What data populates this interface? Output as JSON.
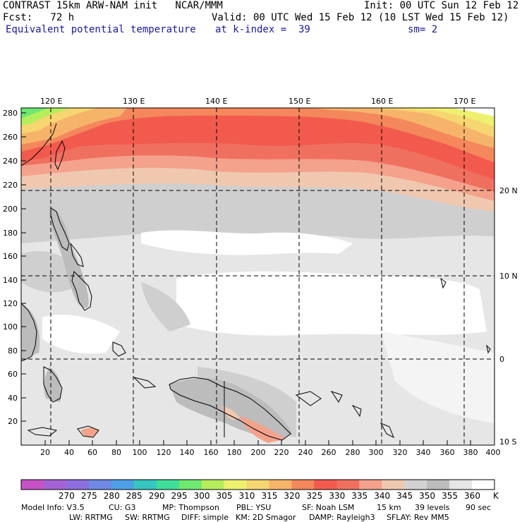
{
  "header": {
    "line1_left": "CONTRAST 15km ARW-NAM init   NCAR/MMM",
    "line1_right": "Init: 00 UTC Sun 12 Feb 12",
    "line2_left": "Fcst:   72 h",
    "line2_right": "Valid: 00 UTC Wed 15 Feb 12 (10 LST Wed 15 Feb 12)",
    "line3_field": "Equivalent potential temperature",
    "line3_level": "at k-index =  39",
    "line3_smooth": "sm= 2"
  },
  "map": {
    "lon_labels": [
      "120 E",
      "130 E",
      "140 E",
      "150 E",
      "160 E",
      "170 E"
    ],
    "lat_labels": [
      "20 N",
      "10 N",
      "0",
      "10 S"
    ],
    "x_grid_ticks": [
      "20",
      "40",
      "60",
      "80",
      "100",
      "120",
      "140",
      "160",
      "180",
      "200",
      "220",
      "240",
      "260",
      "280",
      "300",
      "320",
      "340",
      "360",
      "380",
      "400"
    ],
    "y_grid_ticks": [
      "280",
      "260",
      "240",
      "220",
      "200",
      "180",
      "160",
      "140",
      "120",
      "100",
      "80",
      "60",
      "40",
      "20"
    ]
  },
  "colorbar": {
    "levels": [
      "270",
      "275",
      "280",
      "285",
      "290",
      "295",
      "300",
      "305",
      "310",
      "315",
      "320",
      "325",
      "330",
      "335",
      "340",
      "345",
      "350",
      "355",
      "360"
    ],
    "unit": "K",
    "colors": [
      "#c653c6",
      "#a463d4",
      "#8c6ee0",
      "#6e8ae6",
      "#4ea0e6",
      "#35c6c0",
      "#3ede9a",
      "#6ee86e",
      "#b4ee5c",
      "#eef070",
      "#f6d670",
      "#f6b46a",
      "#f4875c",
      "#f25a4e",
      "#f07060",
      "#f4a28c",
      "#f0c8b0",
      "#d2d2d2",
      "#bcbcbc",
      "#e6e6e6",
      "#ffffff"
    ]
  },
  "footer": {
    "model_info": "Model Info: V3.5",
    "cu": "CU: G3",
    "mp": "MP: Thompson",
    "pbl": "PBL: YSU",
    "sf": "SF: Noah LSM",
    "res": "15 km",
    "levels": "39 levels",
    "dt": "90 sec",
    "lw": "LW: RRTMG",
    "sw": "SW: RRTMG",
    "diff": "DIFF: simple",
    "km": "KM: 2D Smagor",
    "damp": "DAMP: Rayleigh3",
    "sflay": "SFLAY: Rev MM5"
  }
}
